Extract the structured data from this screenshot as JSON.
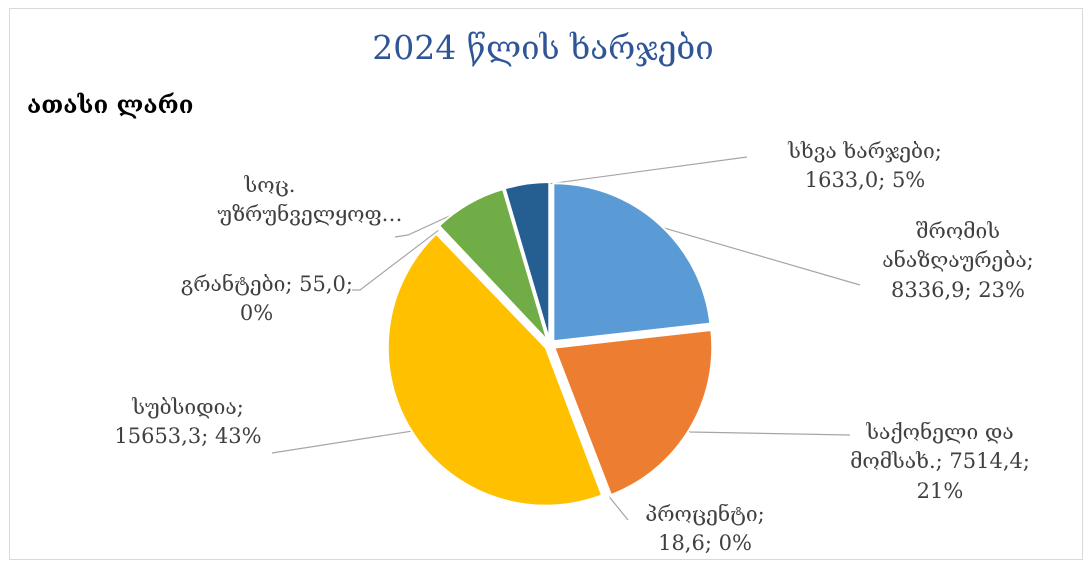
{
  "subtitle": "ათასი ლარი",
  "chart_data": {
    "type": "pie",
    "title": "2024 წლის ხარჯები",
    "unit": "ათასი ლარი",
    "start_angle_deg": 0,
    "direction": "clockwise",
    "slices": [
      {
        "name": "შრომის ანაზღაურება",
        "value": 8336.9,
        "percent": 23,
        "color": "#5b9bd5",
        "label_lines": [
          "შრომის",
          "ანაზღაურება;",
          "8336,9; 23%"
        ]
      },
      {
        "name": "საქონელი და მომსახ.",
        "value": 7514.4,
        "percent": 21,
        "color": "#ed7d31",
        "label_lines": [
          "საქონელი და",
          "მომსახ.; 7514,4;",
          "21%"
        ]
      },
      {
        "name": "პროცენტი",
        "value": 18.6,
        "percent": 0,
        "color": "#a5a5a5",
        "label_lines": [
          "პროცენტი;",
          "18,6; 0%"
        ]
      },
      {
        "name": "სუბსიდია",
        "value": 15653.3,
        "percent": 43,
        "color": "#ffc000",
        "label_lines": [
          "სუბსიდია;",
          "15653,3; 43%"
        ]
      },
      {
        "name": "გრანტები",
        "value": 55.0,
        "percent": 0,
        "color": "#4472c4",
        "label_lines": [
          "გრანტები; 55,0;",
          "0%"
        ]
      },
      {
        "name": "სოც. უზრუნველყოფ…",
        "color": "#70ad47",
        "label_lines": [
          "სოც.",
          "უზრუნველყოფ…"
        ]
      },
      {
        "name": "სხვა ხარჯები",
        "value": 1633.0,
        "percent": 5,
        "color": "#255e91",
        "label_lines": [
          "სხვა ხარჯები;",
          "1633,0; 5%"
        ]
      }
    ]
  }
}
